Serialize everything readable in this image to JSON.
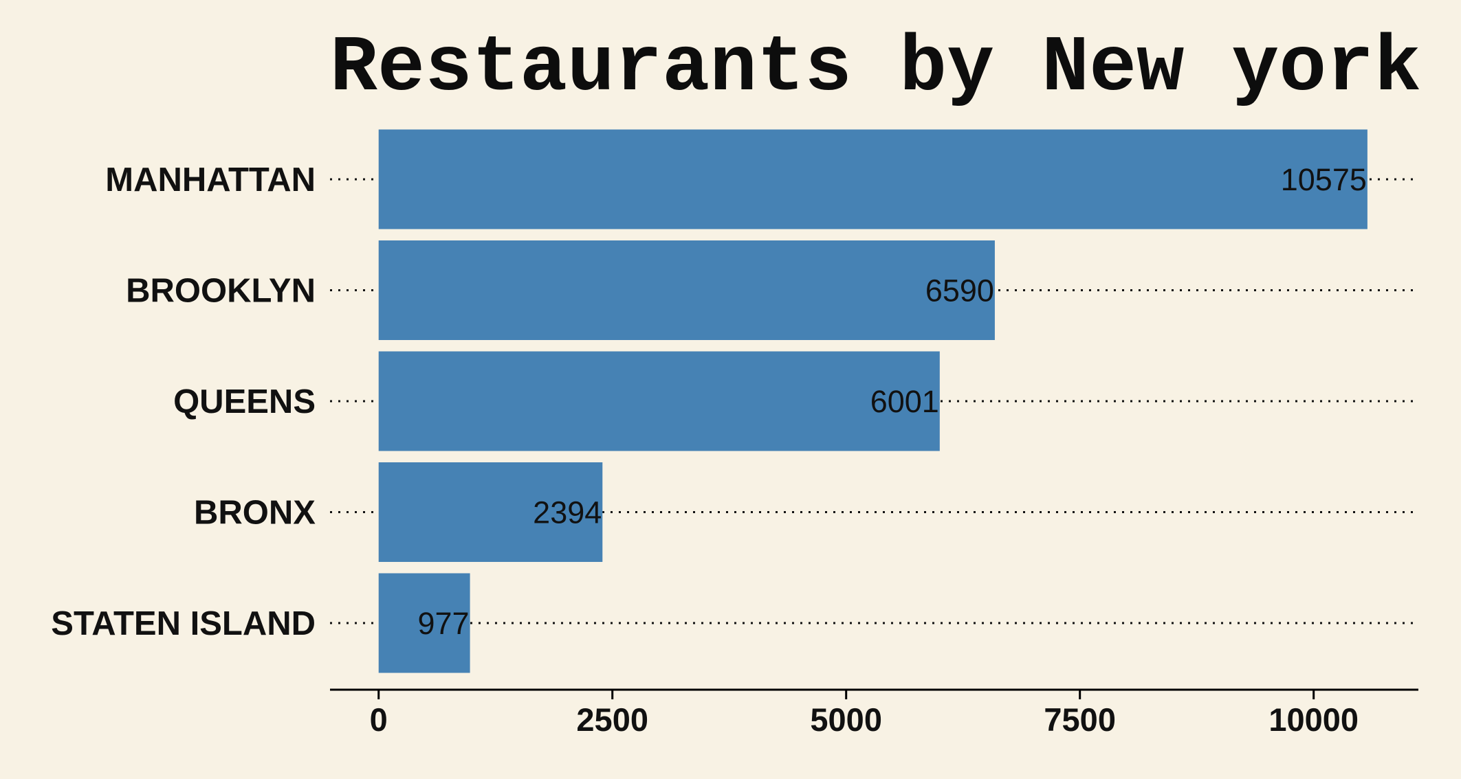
{
  "colors": {
    "background": "#f8f2e4",
    "bar": "#4682b4",
    "text": "#111111"
  },
  "chart_data": {
    "type": "bar",
    "orientation": "horizontal",
    "title": "Restaurants by New york",
    "xlabel": "",
    "ylabel": "",
    "categories": [
      "MANHATTAN",
      "BROOKLYN",
      "QUEENS",
      "BRONX",
      "STATEN ISLAND"
    ],
    "values": [
      10575,
      6590,
      6001,
      2394,
      977
    ],
    "data_labels": [
      "10575",
      "6590",
      "6001",
      "2394",
      "977"
    ],
    "xlim": [
      -520,
      11120
    ],
    "xticks": [
      0,
      2500,
      5000,
      7500,
      10000
    ],
    "xtick_labels": [
      "0",
      "2500",
      "5000",
      "7500",
      "10000"
    ],
    "grid": "dotted horizontal lines at each category",
    "legend": "none"
  }
}
